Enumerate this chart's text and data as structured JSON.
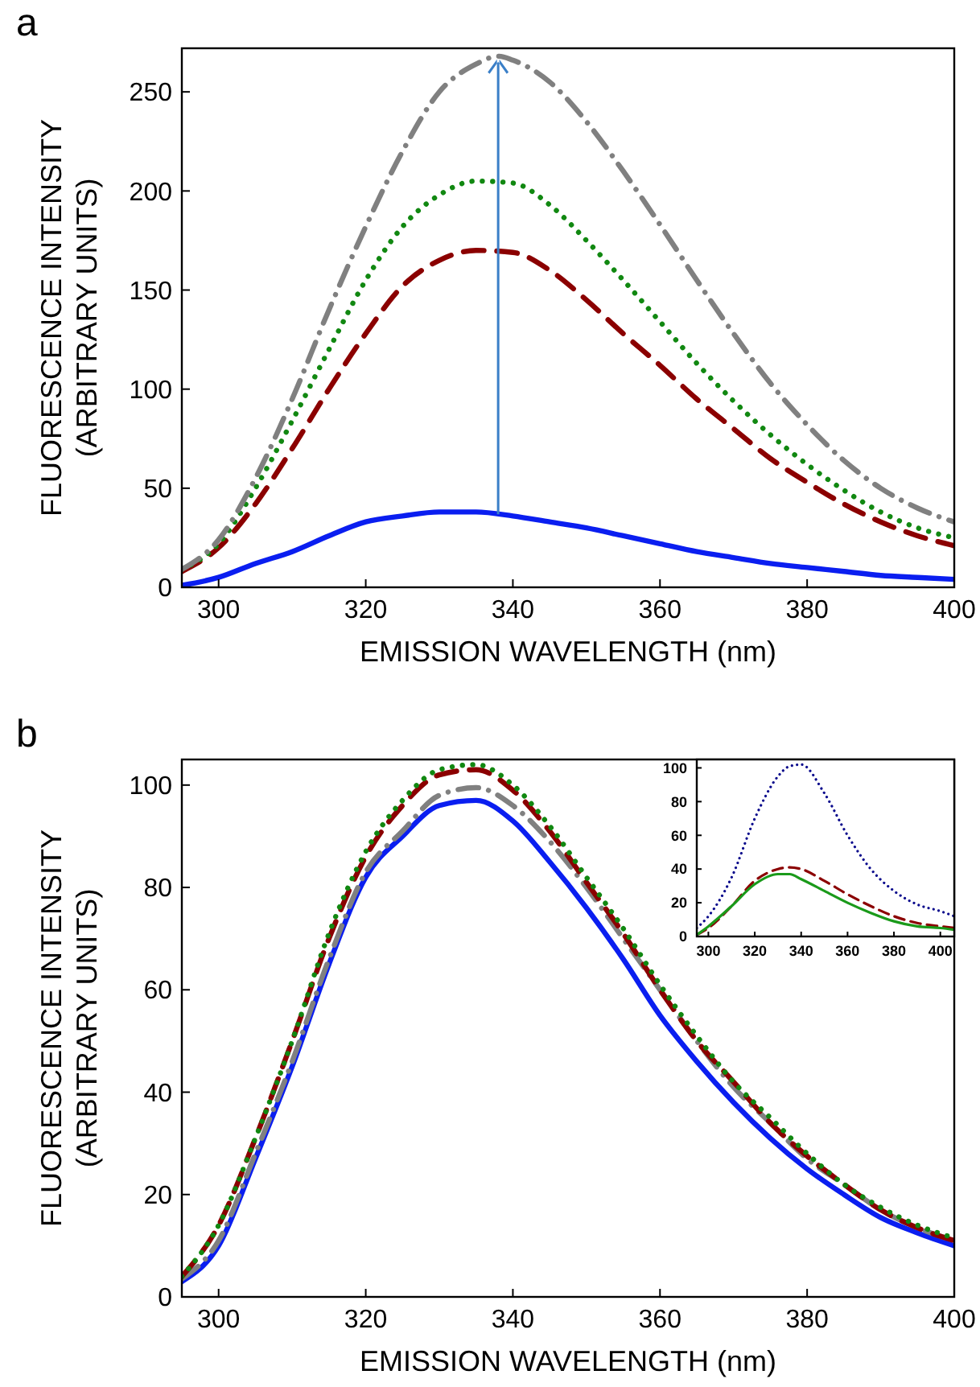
{
  "chart_data": [
    {
      "type": "line",
      "title": "a",
      "xlabel": "EMISSION WAVELENGTH (nm)",
      "ylabel": "FLUORESCENCE INTENSITY\n(ARBITRARY UNITS)",
      "x": [
        295,
        300,
        305,
        310,
        315,
        320,
        325,
        330,
        335,
        340,
        345,
        350,
        355,
        360,
        365,
        370,
        375,
        380,
        385,
        390,
        395,
        400
      ],
      "xlim": [
        295,
        400
      ],
      "ylim": [
        0,
        272
      ],
      "xticks": [
        300,
        320,
        340,
        360,
        380,
        400
      ],
      "yticks": [
        0,
        50,
        100,
        150,
        200,
        250
      ],
      "series": [
        {
          "color": "#0a1ef0",
          "line_style": "solid",
          "values": [
            1,
            5,
            12,
            18,
            26,
            33,
            36,
            38,
            38,
            36,
            33,
            30,
            26,
            22,
            18,
            15,
            12,
            10,
            8,
            6,
            5,
            4
          ]
        },
        {
          "color": "#8b0000",
          "line_style": "dashed",
          "values": [
            8,
            20,
            42,
            70,
            100,
            128,
            152,
            165,
            170,
            169,
            160,
            145,
            128,
            112,
            95,
            80,
            65,
            53,
            42,
            33,
            26,
            21
          ]
        },
        {
          "color": "#118811",
          "line_style": "dotted",
          "values": [
            9,
            22,
            50,
            84,
            120,
            155,
            182,
            198,
            205,
            204,
            193,
            175,
            155,
            134,
            113,
            94,
            77,
            62,
            49,
            38,
            30,
            25
          ]
        },
        {
          "color": "#808080",
          "line_style": "dashdot",
          "x": [
            295,
            300,
            305,
            310,
            315,
            320,
            325,
            330,
            335,
            338,
            340,
            345,
            350,
            355,
            360,
            365,
            370,
            375,
            380,
            385,
            390,
            395,
            400
          ],
          "values": [
            9,
            24,
            55,
            95,
            140,
            182,
            220,
            250,
            264,
            268,
            266,
            255,
            235,
            210,
            183,
            155,
            128,
            103,
            82,
            64,
            50,
            40,
            33
          ]
        }
      ]
    },
    {
      "type": "line",
      "title": "b",
      "xlabel": "EMISSION WAVELENGTH (nm)",
      "ylabel": "FLUORESCENCE INTENSITY\n(ARBITRARY UNITS)",
      "x": [
        295,
        300,
        305,
        310,
        315,
        320,
        325,
        330,
        335,
        340,
        345,
        350,
        355,
        360,
        365,
        370,
        375,
        380,
        385,
        390,
        395,
        400
      ],
      "xlim": [
        295,
        400
      ],
      "ylim": [
        0,
        105
      ],
      "xticks": [
        300,
        320,
        340,
        360,
        380,
        400
      ],
      "yticks": [
        0,
        20,
        40,
        60,
        80,
        100
      ],
      "series": [
        {
          "color": "#0a1ef0",
          "line_style": "solid",
          "values": [
            3,
            10,
            27,
            45,
            65,
            82,
            90,
            96,
            97,
            93,
            85,
            76,
            66,
            55,
            46,
            38,
            31,
            25,
            20,
            15.5,
            12.5,
            10
          ]
        },
        {
          "color": "#808080",
          "line_style": "dashdot",
          "values": [
            3.5,
            11,
            28,
            46,
            66,
            83,
            91,
            98,
            99.5,
            96,
            89,
            80,
            70,
            60,
            50,
            41,
            34,
            27,
            22,
            17,
            13.5,
            11
          ]
        },
        {
          "color": "#8b0000",
          "line_style": "dashed",
          "values": [
            4,
            14,
            31,
            50,
            70,
            86,
            96,
            102,
            103,
            99,
            91,
            81,
            71,
            60,
            50,
            42,
            34,
            27.5,
            22,
            17,
            13.5,
            11
          ]
        },
        {
          "color": "#118811",
          "line_style": "dotted",
          "values": [
            4,
            14,
            31,
            50,
            71,
            87,
            97,
            103,
            104,
            100,
            92,
            82,
            72,
            61,
            51,
            42,
            35,
            28,
            22,
            17.5,
            14,
            11.5
          ]
        }
      ]
    },
    {
      "type": "line",
      "x": [
        295,
        300,
        310,
        320,
        330,
        335,
        340,
        350,
        360,
        370,
        380,
        390,
        400,
        406
      ],
      "xlim": [
        295,
        406
      ],
      "ylim": [
        0,
        105
      ],
      "xticks": [
        300,
        320,
        340,
        360,
        380,
        400
      ],
      "yticks": [
        0,
        20,
        40,
        60,
        80,
        100
      ],
      "series": [
        {
          "color": "#0a0a8c",
          "line_style": "dotted",
          "values": [
            5,
            12,
            35,
            70,
            95,
            101,
            102,
            85,
            60,
            40,
            27,
            19,
            15,
            12
          ]
        },
        {
          "color": "#8b0000",
          "line_style": "dashed",
          "values": [
            1,
            5,
            18,
            33,
            40,
            41,
            40,
            33,
            25,
            18,
            12,
            8,
            6,
            5
          ]
        },
        {
          "color": "#1a9a1a",
          "line_style": "solid",
          "values": [
            1,
            6,
            18,
            31,
            37,
            37,
            34,
            27,
            20,
            14,
            9,
            6,
            5,
            4
          ]
        }
      ]
    }
  ]
}
